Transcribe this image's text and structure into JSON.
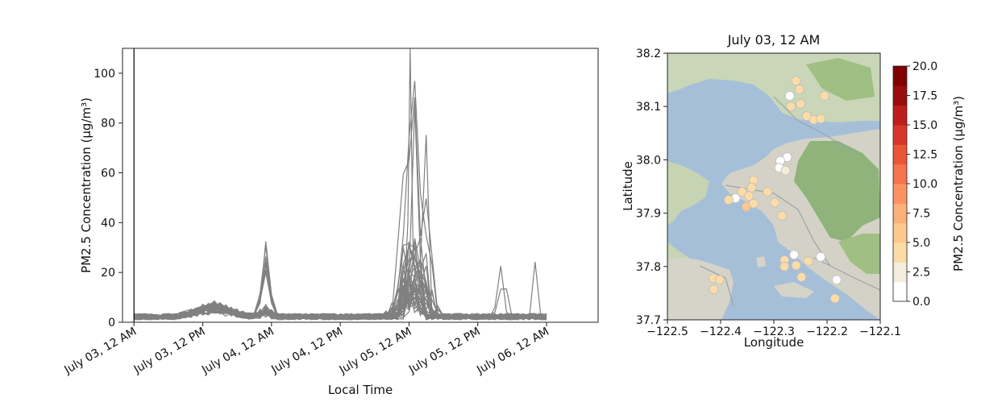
{
  "chart_data": [
    {
      "type": "line",
      "xlabel": "Local Time",
      "ylabel": "PM2.5 Concentration (μg/m³)",
      "ylim": [
        0,
        110
      ],
      "yticks": [
        0,
        20,
        40,
        60,
        80,
        100
      ],
      "xlim_hours": [
        -2,
        81
      ],
      "xticks": [
        {
          "label": "July 03, 12 AM",
          "hour": 0
        },
        {
          "label": "July 03, 12 PM",
          "hour": 12
        },
        {
          "label": "July 04, 12 AM",
          "hour": 24
        },
        {
          "label": "July 04, 12 PM",
          "hour": 36
        },
        {
          "label": "July 05, 12 AM",
          "hour": 48
        },
        {
          "label": "July 05, 12 PM",
          "hour": 60
        },
        {
          "label": "July 06, 12 AM",
          "hour": 72
        }
      ],
      "current_time_marker_hour": 0,
      "series_color": "#808080",
      "series_count": 40,
      "peaks": [
        {
          "hour": 48.2,
          "value": 110
        },
        {
          "hour": 47.8,
          "value": 63
        },
        {
          "hour": 48.6,
          "value": 65
        },
        {
          "hour": 23.0,
          "value": 36
        },
        {
          "hour": 23.5,
          "value": 30
        },
        {
          "hour": 64.0,
          "value": 21
        },
        {
          "hour": 70.0,
          "value": 22
        }
      ]
    },
    {
      "type": "scatter",
      "title": "July 03, 12 AM",
      "xlabel": "Longitude",
      "ylabel": "Latitude",
      "xlim": [
        -122.5,
        -122.1
      ],
      "ylim": [
        37.7,
        38.2
      ],
      "xticks": [
        -122.5,
        -122.4,
        -122.3,
        -122.2,
        -122.1
      ],
      "yticks": [
        37.7,
        37.8,
        37.9,
        38.0,
        38.1,
        38.2
      ],
      "xtick_labels": [
        "−122.5",
        "−122.4",
        "−122.3",
        "−122.2",
        "−122.1"
      ],
      "ytick_labels": [
        "37.7",
        "37.8",
        "37.9",
        "38.0",
        "38.1",
        "38.2"
      ],
      "points": [
        {
          "lon": -122.258,
          "lat": 38.148,
          "value": 4.5
        },
        {
          "lon": -122.252,
          "lat": 38.132,
          "value": 3.8
        },
        {
          "lon": -122.27,
          "lat": 38.12,
          "value": 0.3
        },
        {
          "lon": -122.25,
          "lat": 38.105,
          "value": 4.2
        },
        {
          "lon": -122.268,
          "lat": 38.1,
          "value": 4.6
        },
        {
          "lon": -122.205,
          "lat": 38.12,
          "value": 3.5
        },
        {
          "lon": -122.238,
          "lat": 38.082,
          "value": 4.0
        },
        {
          "lon": -122.225,
          "lat": 38.075,
          "value": 4.3
        },
        {
          "lon": -122.212,
          "lat": 38.077,
          "value": 4.8
        },
        {
          "lon": -122.275,
          "lat": 38.005,
          "value": 0.2
        },
        {
          "lon": -122.288,
          "lat": 37.998,
          "value": 0.4
        },
        {
          "lon": -122.29,
          "lat": 37.985,
          "value": 0.3
        },
        {
          "lon": -122.278,
          "lat": 37.98,
          "value": 3.2
        },
        {
          "lon": -122.338,
          "lat": 37.962,
          "value": 4.4
        },
        {
          "lon": -122.342,
          "lat": 37.948,
          "value": 3.9
        },
        {
          "lon": -122.36,
          "lat": 37.94,
          "value": 4.8
        },
        {
          "lon": -122.372,
          "lat": 37.928,
          "value": 0.5
        },
        {
          "lon": -122.385,
          "lat": 37.925,
          "value": 3.6
        },
        {
          "lon": -122.347,
          "lat": 37.932,
          "value": 4.1
        },
        {
          "lon": -122.352,
          "lat": 37.912,
          "value": 5.0
        },
        {
          "lon": -122.338,
          "lat": 37.918,
          "value": 3.7
        },
        {
          "lon": -122.312,
          "lat": 37.94,
          "value": 4.2
        },
        {
          "lon": -122.298,
          "lat": 37.92,
          "value": 4.9
        },
        {
          "lon": -122.285,
          "lat": 37.895,
          "value": 4.7
        },
        {
          "lon": -122.262,
          "lat": 37.822,
          "value": 0.4
        },
        {
          "lon": -122.28,
          "lat": 37.812,
          "value": 4.4
        },
        {
          "lon": -122.258,
          "lat": 37.802,
          "value": 3.8
        },
        {
          "lon": -122.235,
          "lat": 37.81,
          "value": 4.0
        },
        {
          "lon": -122.212,
          "lat": 37.818,
          "value": 0.3
        },
        {
          "lon": -122.28,
          "lat": 37.8,
          "value": 4.9
        },
        {
          "lon": -122.248,
          "lat": 37.78,
          "value": 4.5
        },
        {
          "lon": -122.182,
          "lat": 37.775,
          "value": 0.2
        },
        {
          "lon": -122.185,
          "lat": 37.74,
          "value": 3.9
        },
        {
          "lon": -122.414,
          "lat": 37.778,
          "value": 4.3
        },
        {
          "lon": -122.402,
          "lat": 37.775,
          "value": 4.6
        },
        {
          "lon": -122.413,
          "lat": 37.757,
          "value": 3.4
        }
      ],
      "colorbar": {
        "label": "PM2.5 Concentration (μg/m³)",
        "min": 0,
        "max": 20,
        "ticks": [
          0,
          2.5,
          5,
          7.5,
          10,
          12.5,
          15,
          17.5,
          20
        ],
        "tick_labels": [
          "0.0",
          "2.5",
          "5.0",
          "7.5",
          "10.0",
          "12.5",
          "15.0",
          "17.5",
          "20.0"
        ],
        "colors": [
          "#ffffff",
          "#f4eddb",
          "#fcdca6",
          "#fcc88e",
          "#fcb07a",
          "#fc9262",
          "#f5744d",
          "#ec5638",
          "#d6372a",
          "#bb1e1b",
          "#9a0d0d",
          "#7f0000"
        ]
      }
    }
  ]
}
